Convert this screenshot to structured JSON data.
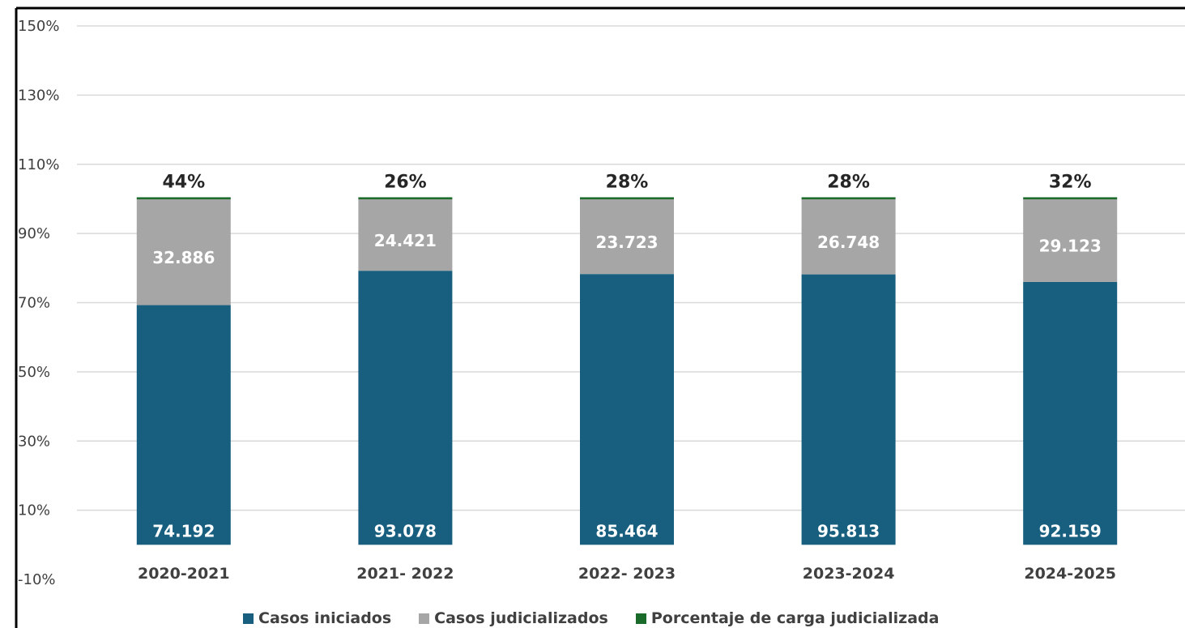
{
  "colors": {
    "iniciados": "#175e7f",
    "judicializados": "#a6a6a6",
    "porcentaje": "#1a6b2a",
    "grid": "#d9d9d9",
    "frame": "#000000"
  },
  "chart_data": {
    "type": "bar",
    "stacked": "percent",
    "categories": [
      "2020-2021",
      "2021- 2022",
      "2022- 2023",
      "2023-2024",
      "2024-2025"
    ],
    "series": [
      {
        "name": "Casos iniciados",
        "values": [
          74192,
          93078,
          85464,
          95813,
          92159
        ],
        "labels": [
          "74.192",
          "93.078",
          "85.464",
          "95.813",
          "92.159"
        ]
      },
      {
        "name": "Casos judicializados",
        "values": [
          32886,
          24421,
          23723,
          26748,
          29123
        ],
        "labels": [
          "32.886",
          "24.421",
          "23.723",
          "26.748",
          "29.123"
        ]
      },
      {
        "name": "Porcentaje de carga judicializada",
        "values": [
          44,
          26,
          28,
          28,
          32
        ],
        "labels": [
          "44%",
          "26%",
          "28%",
          "28%",
          "32%"
        ]
      }
    ],
    "yticks": [
      "150%",
      "130%",
      "110%",
      "90%",
      "70%",
      "50%",
      "30%",
      "10%",
      "-10%"
    ],
    "ylim": [
      -10,
      150
    ],
    "grid": true,
    "legend": "bottom"
  }
}
